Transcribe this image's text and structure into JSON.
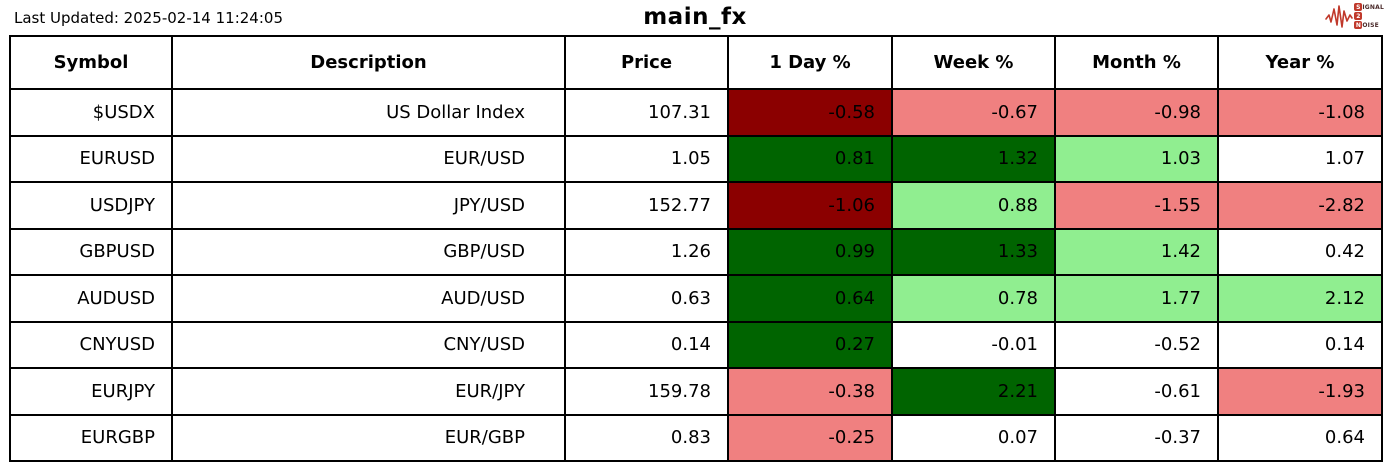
{
  "page": {
    "last_updated": "Last Updated: 2025-02-14 11:24:05",
    "title": "main_fx"
  },
  "logo": {
    "name": "signal-2-noise",
    "red": "#c0392b",
    "line1_badge": "S",
    "line1_text": "IGNAL",
    "line2_badge": "2",
    "line3_badge": "N",
    "line3_text": "OISE"
  },
  "colors": {
    "strong_negative_bg": "#8B0000",
    "negative_bg": "#F08080",
    "strong_positive_bg": "#006400",
    "positive_bg": "#90EE90",
    "neutral_bg": "#FFFFFF",
    "border": "#000000",
    "text": "#000000"
  },
  "chart_data": {
    "type": "table",
    "title": "main_fx",
    "columns": [
      "Symbol",
      "Description",
      "Price",
      "1 Day %",
      "Week %",
      "Month %",
      "Year %"
    ],
    "rows": [
      {
        "symbol": "$USDX",
        "description": "US Dollar Index",
        "price": "107.31",
        "changes": [
          {
            "value": "-0.58",
            "bg": "#8B0000"
          },
          {
            "value": "-0.67",
            "bg": "#F08080"
          },
          {
            "value": "-0.98",
            "bg": "#F08080"
          },
          {
            "value": "-1.08",
            "bg": "#F08080"
          }
        ]
      },
      {
        "symbol": "EURUSD",
        "description": "EUR/USD",
        "price": "1.05",
        "changes": [
          {
            "value": "0.81",
            "bg": "#006400"
          },
          {
            "value": "1.32",
            "bg": "#006400"
          },
          {
            "value": "1.03",
            "bg": "#90EE90"
          },
          {
            "value": "1.07",
            "bg": "#FFFFFF"
          }
        ]
      },
      {
        "symbol": "USDJPY",
        "description": "JPY/USD",
        "price": "152.77",
        "changes": [
          {
            "value": "-1.06",
            "bg": "#8B0000"
          },
          {
            "value": "0.88",
            "bg": "#90EE90"
          },
          {
            "value": "-1.55",
            "bg": "#F08080"
          },
          {
            "value": "-2.82",
            "bg": "#F08080"
          }
        ]
      },
      {
        "symbol": "GBPUSD",
        "description": "GBP/USD",
        "price": "1.26",
        "changes": [
          {
            "value": "0.99",
            "bg": "#006400"
          },
          {
            "value": "1.33",
            "bg": "#006400"
          },
          {
            "value": "1.42",
            "bg": "#90EE90"
          },
          {
            "value": "0.42",
            "bg": "#FFFFFF"
          }
        ]
      },
      {
        "symbol": "AUDUSD",
        "description": "AUD/USD",
        "price": "0.63",
        "changes": [
          {
            "value": "0.64",
            "bg": "#006400"
          },
          {
            "value": "0.78",
            "bg": "#90EE90"
          },
          {
            "value": "1.77",
            "bg": "#90EE90"
          },
          {
            "value": "2.12",
            "bg": "#90EE90"
          }
        ]
      },
      {
        "symbol": "CNYUSD",
        "description": "CNY/USD",
        "price": "0.14",
        "changes": [
          {
            "value": "0.27",
            "bg": "#006400"
          },
          {
            "value": "-0.01",
            "bg": "#FFFFFF"
          },
          {
            "value": "-0.52",
            "bg": "#FFFFFF"
          },
          {
            "value": "0.14",
            "bg": "#FFFFFF"
          }
        ]
      },
      {
        "symbol": "EURJPY",
        "description": "EUR/JPY",
        "price": "159.78",
        "changes": [
          {
            "value": "-0.38",
            "bg": "#F08080"
          },
          {
            "value": "2.21",
            "bg": "#006400"
          },
          {
            "value": "-0.61",
            "bg": "#FFFFFF"
          },
          {
            "value": "-1.93",
            "bg": "#F08080"
          }
        ]
      },
      {
        "symbol": "EURGBP",
        "description": "EUR/GBP",
        "price": "0.83",
        "changes": [
          {
            "value": "-0.25",
            "bg": "#F08080"
          },
          {
            "value": "0.07",
            "bg": "#FFFFFF"
          },
          {
            "value": "-0.37",
            "bg": "#FFFFFF"
          },
          {
            "value": "0.64",
            "bg": "#FFFFFF"
          }
        ]
      }
    ]
  }
}
